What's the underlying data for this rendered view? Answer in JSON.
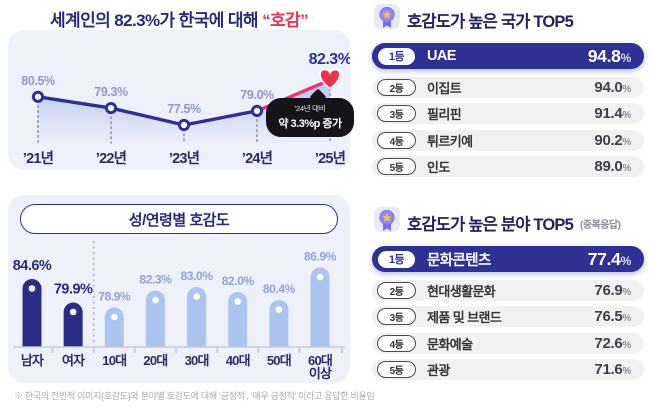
{
  "colors": {
    "navy": "#2e3192",
    "navy_text": "#2b2a7a",
    "red": "#e8334f",
    "pink_line": "#e8356d",
    "bar_dark": "#2b2d84",
    "bar_light": "#abc5ee",
    "card_bg": "#eef0fa",
    "row_gray": "#f1f1f4",
    "label_muted_blue": "#9298cc",
    "medal_purple": "#8579f0",
    "medal_gold": "#f2c14e"
  },
  "headline": {
    "prefix": "세계인의 82.3%가 한국에 대해 ",
    "highlight": "“호감”"
  },
  "demo_card": {
    "title": "성/연령별 호감도"
  },
  "footnote": "※ 한국의 전반적 이미지(호감도)와 분야별 호감도에 대해 ‘긍정적’, ‘매우 긍정적’ 이라고 응답한 비율임",
  "rank_sections": [
    {
      "title": "호감도가 높은 국가 TOP5",
      "suffix": "",
      "rows": [
        {
          "rank": "1등",
          "label": "UAE",
          "value": "94.8",
          "unit": "%"
        },
        {
          "rank": "2등",
          "label": "이집트",
          "value": "94.0",
          "unit": "%"
        },
        {
          "rank": "3등",
          "label": "필리핀",
          "value": "91.4",
          "unit": "%"
        },
        {
          "rank": "4등",
          "label": "튀르키예",
          "value": "90.2",
          "unit": "%"
        },
        {
          "rank": "5등",
          "label": "인도",
          "value": "89.0",
          "unit": "%"
        }
      ]
    },
    {
      "title": "호감도가 높은 분야 TOP5",
      "suffix": "(중복응답)",
      "rows": [
        {
          "rank": "1등",
          "label": "문화콘텐츠",
          "value": "77.4",
          "unit": "%"
        },
        {
          "rank": "2등",
          "label": "현대생활문화",
          "value": "76.9",
          "unit": "%"
        },
        {
          "rank": "3등",
          "label": "제품 및 브랜드",
          "value": "76.5",
          "unit": "%"
        },
        {
          "rank": "4등",
          "label": "문화예술",
          "value": "72.6",
          "unit": "%"
        },
        {
          "rank": "5등",
          "label": "관광",
          "value": "71.6",
          "unit": "%"
        }
      ]
    }
  ],
  "chart_data": [
    {
      "type": "line",
      "title": "세계인의 82.3%가 한국에 대해 “호감”",
      "x": [
        "’21년",
        "’22년",
        "’23년",
        "’24년",
        "’25년"
      ],
      "values": [
        80.5,
        79.3,
        77.5,
        79.0,
        82.3
      ],
      "unit": "%",
      "ylim": [
        75,
        84
      ],
      "highlight_last_segment": true,
      "annotation_line1": "’24년 대비",
      "annotation_line2": "약 3.3%p 증가"
    },
    {
      "type": "bar",
      "title": "성/연령별 호감도",
      "categories": [
        "남자",
        "여자",
        "10대",
        "20대",
        "30대",
        "40대",
        "50대",
        "60대 이상"
      ],
      "values": [
        84.6,
        79.9,
        78.9,
        82.3,
        83.0,
        82.0,
        80.4,
        86.9
      ],
      "unit": "%",
      "ylim": [
        71,
        90
      ],
      "dark_group_count": 2
    }
  ]
}
